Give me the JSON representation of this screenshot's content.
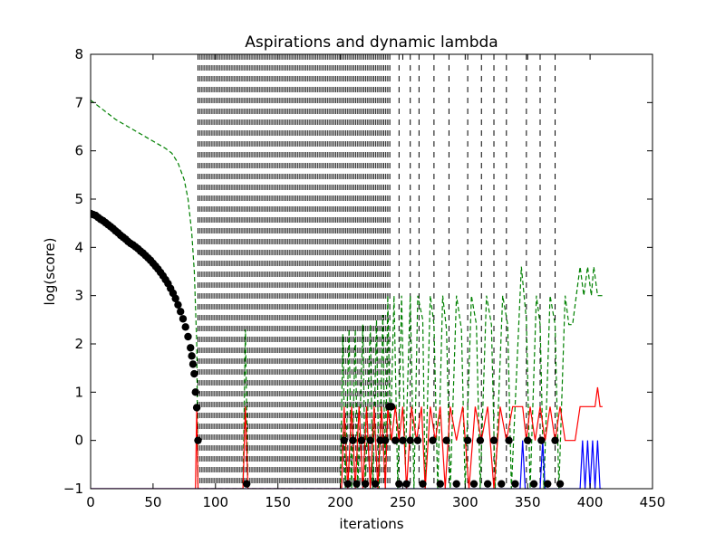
{
  "chart_data": {
    "type": "line",
    "title": "Aspirations and dynamic lambda",
    "xlabel": "iterations",
    "ylabel": "log(score)",
    "xlim": [
      0,
      450
    ],
    "ylim": [
      -1,
      8
    ],
    "xticks": [
      0,
      50,
      100,
      150,
      200,
      250,
      300,
      350,
      400,
      450
    ],
    "yticks": [
      -1,
      0,
      1,
      2,
      3,
      4,
      5,
      6,
      7,
      8
    ],
    "grid": false,
    "legend": "none",
    "colors": {
      "score_markers": "#000000",
      "aspiration": "#008000",
      "lambda_red": "#ff0000",
      "lambda_blue": "#0000ff",
      "restart_lines": "#000000"
    },
    "series": [
      {
        "style": "black-dots",
        "points": [
          [
            0,
            4.7
          ],
          [
            2,
            4.68
          ],
          [
            4,
            4.66
          ],
          [
            6,
            4.62
          ],
          [
            8,
            4.58
          ],
          [
            10,
            4.55
          ],
          [
            12,
            4.51
          ],
          [
            14,
            4.47
          ],
          [
            16,
            4.43
          ],
          [
            18,
            4.39
          ],
          [
            20,
            4.34
          ],
          [
            22,
            4.3
          ],
          [
            24,
            4.25
          ],
          [
            26,
            4.21
          ],
          [
            28,
            4.17
          ],
          [
            30,
            4.12
          ],
          [
            32,
            4.08
          ],
          [
            34,
            4.05
          ],
          [
            36,
            4.01
          ],
          [
            38,
            3.97
          ],
          [
            40,
            3.92
          ],
          [
            42,
            3.88
          ],
          [
            44,
            3.83
          ],
          [
            46,
            3.78
          ],
          [
            48,
            3.73
          ],
          [
            50,
            3.67
          ],
          [
            52,
            3.61
          ],
          [
            54,
            3.55
          ],
          [
            56,
            3.48
          ],
          [
            58,
            3.41
          ],
          [
            60,
            3.33
          ],
          [
            62,
            3.25
          ],
          [
            64,
            3.15
          ],
          [
            66,
            3.05
          ],
          [
            68,
            2.94
          ],
          [
            70,
            2.81
          ],
          [
            72,
            2.67
          ],
          [
            74,
            2.52
          ],
          [
            76,
            2.35
          ],
          [
            78,
            2.15
          ],
          [
            80,
            1.92
          ],
          [
            81,
            1.75
          ],
          [
            82,
            1.58
          ],
          [
            83,
            1.38
          ],
          [
            84,
            1.0
          ],
          [
            85,
            0.68
          ],
          [
            86,
            0.0
          ],
          [
            125,
            -0.9
          ],
          [
            203,
            0.0
          ],
          [
            206,
            -0.9
          ],
          [
            210,
            0.0
          ],
          [
            213,
            -0.9
          ],
          [
            217,
            0.0
          ],
          [
            220,
            -0.9
          ],
          [
            224,
            0.0
          ],
          [
            228,
            -0.9
          ],
          [
            232,
            0.0
          ],
          [
            236,
            0.0
          ],
          [
            239,
            0.7
          ],
          [
            241,
            0.7
          ],
          [
            244,
            0.0
          ],
          [
            247,
            -0.9
          ],
          [
            250,
            0.0
          ],
          [
            253,
            -0.9
          ],
          [
            256,
            0.0
          ],
          [
            262,
            0.0
          ],
          [
            266,
            -0.9
          ],
          [
            274,
            0.0
          ],
          [
            280,
            -0.9
          ],
          [
            285,
            0.0
          ],
          [
            293,
            -0.9
          ],
          [
            302,
            0.0
          ],
          [
            307,
            -0.9
          ],
          [
            312,
            0.0
          ],
          [
            318,
            -0.9
          ],
          [
            323,
            0.0
          ],
          [
            329,
            -0.9
          ],
          [
            335,
            0.0
          ],
          [
            340,
            -0.9
          ],
          [
            350,
            0.0
          ],
          [
            355,
            -0.9
          ],
          [
            361,
            0.0
          ],
          [
            366,
            -0.9
          ],
          [
            372,
            0.0
          ],
          [
            376,
            -0.9
          ]
        ]
      },
      {
        "style": "green-dashed",
        "points": [
          [
            0,
            7.05
          ],
          [
            10,
            6.85
          ],
          [
            20,
            6.65
          ],
          [
            30,
            6.5
          ],
          [
            40,
            6.35
          ],
          [
            50,
            6.2
          ],
          [
            60,
            6.05
          ],
          [
            65,
            5.95
          ],
          [
            70,
            5.75
          ],
          [
            75,
            5.4
          ],
          [
            78,
            5.0
          ],
          [
            81,
            4.3
          ],
          [
            83,
            3.5
          ],
          [
            85,
            2.0
          ],
          [
            86,
            -1.0
          ],
          [
            122,
            -1.0
          ],
          [
            124,
            2.3
          ],
          [
            126,
            -1.0
          ],
          [
            200,
            -1.0
          ],
          [
            202,
            2.2
          ],
          [
            204,
            -1.0
          ],
          [
            207,
            2.3
          ],
          [
            209,
            -1.0
          ],
          [
            212,
            2.3
          ],
          [
            214,
            -1.0
          ],
          [
            218,
            2.4
          ],
          [
            220,
            -1.0
          ],
          [
            224,
            2.4
          ],
          [
            226,
            -1.0
          ],
          [
            229,
            2.5
          ],
          [
            231,
            -1.0
          ],
          [
            234,
            2.6
          ],
          [
            236,
            -1.0
          ],
          [
            238,
            3.0
          ],
          [
            240,
            0.0
          ],
          [
            243,
            3.0
          ],
          [
            246,
            -1.0
          ],
          [
            249,
            3.0
          ],
          [
            252,
            -0.5
          ],
          [
            256,
            3.0
          ],
          [
            259,
            -1.0
          ],
          [
            262,
            3.0
          ],
          [
            266,
            2.5
          ],
          [
            268,
            -1.0
          ],
          [
            272,
            3.0
          ],
          [
            275,
            2.4
          ],
          [
            278,
            -1.0
          ],
          [
            282,
            3.0
          ],
          [
            285,
            2.3
          ],
          [
            288,
            -1.0
          ],
          [
            293,
            3.0
          ],
          [
            297,
            2.3
          ],
          [
            300,
            -1.0
          ],
          [
            305,
            3.0
          ],
          [
            309,
            2.4
          ],
          [
            312,
            -1.0
          ],
          [
            317,
            3.0
          ],
          [
            321,
            2.4
          ],
          [
            324,
            -1.0
          ],
          [
            330,
            3.0
          ],
          [
            334,
            2.4
          ],
          [
            337,
            -1.0
          ],
          [
            345,
            3.6
          ],
          [
            349,
            2.5
          ],
          [
            352,
            -1.0
          ],
          [
            357,
            3.0
          ],
          [
            360,
            2.4
          ],
          [
            363,
            -1.0
          ],
          [
            368,
            3.0
          ],
          [
            372,
            2.4
          ],
          [
            375,
            -1.0
          ],
          [
            380,
            3.0
          ],
          [
            383,
            2.4
          ],
          [
            386,
            2.4
          ],
          [
            390,
            3.2
          ],
          [
            392,
            3.6
          ],
          [
            395,
            3.0
          ],
          [
            398,
            3.6
          ],
          [
            401,
            3.0
          ],
          [
            403,
            3.6
          ],
          [
            406,
            3.0
          ],
          [
            410,
            3.0
          ]
        ]
      },
      {
        "style": "red-solid",
        "points": [
          [
            0,
            -1.0
          ],
          [
            84,
            -1.0
          ],
          [
            85,
            0.7
          ],
          [
            86,
            -1.0
          ],
          [
            122,
            -1.0
          ],
          [
            124,
            0.7
          ],
          [
            126,
            -1.0
          ],
          [
            201,
            -1.0
          ],
          [
            203,
            0.7
          ],
          [
            206,
            -1.0
          ],
          [
            209,
            0.7
          ],
          [
            212,
            -1.0
          ],
          [
            215,
            0.7
          ],
          [
            218,
            -1.0
          ],
          [
            221,
            0.7
          ],
          [
            224,
            -1.0
          ],
          [
            227,
            0.7
          ],
          [
            230,
            -1.0
          ],
          [
            233,
            0.7
          ],
          [
            236,
            -1.0
          ],
          [
            238,
            0.7
          ],
          [
            241,
            0.0
          ],
          [
            244,
            0.7
          ],
          [
            247,
            0.0
          ],
          [
            250,
            0.7
          ],
          [
            253,
            -1.0
          ],
          [
            257,
            0.7
          ],
          [
            261,
            0.0
          ],
          [
            265,
            0.7
          ],
          [
            268,
            -1.0
          ],
          [
            272,
            0.7
          ],
          [
            276,
            0.0
          ],
          [
            280,
            0.7
          ],
          [
            284,
            -1.0
          ],
          [
            288,
            0.7
          ],
          [
            293,
            0.0
          ],
          [
            298,
            0.7
          ],
          [
            303,
            -1.0
          ],
          [
            308,
            0.7
          ],
          [
            313,
            0.0
          ],
          [
            318,
            0.7
          ],
          [
            323,
            -1.0
          ],
          [
            328,
            0.7
          ],
          [
            333,
            0.0
          ],
          [
            338,
            0.7
          ],
          [
            343,
            0.7
          ],
          [
            346,
            0.7
          ],
          [
            349,
            0.0
          ],
          [
            352,
            0.7
          ],
          [
            356,
            0.0
          ],
          [
            360,
            0.7
          ],
          [
            364,
            0.0
          ],
          [
            368,
            0.7
          ],
          [
            372,
            0.0
          ],
          [
            376,
            0.7
          ],
          [
            380,
            0.0
          ],
          [
            384,
            0.0
          ],
          [
            388,
            0.0
          ],
          [
            392,
            0.7
          ],
          [
            404,
            0.7
          ],
          [
            406,
            1.1
          ],
          [
            408,
            0.7
          ],
          [
            410,
            0.7
          ]
        ]
      },
      {
        "style": "blue-solid",
        "points": [
          [
            0,
            -1.0
          ],
          [
            344,
            -1.0
          ],
          [
            346,
            0.0
          ],
          [
            348,
            -1.0
          ],
          [
            360,
            -1.0
          ],
          [
            362,
            0.0
          ],
          [
            364,
            -1.0
          ],
          [
            392,
            -1.0
          ],
          [
            394,
            0.0
          ],
          [
            396,
            -1.0
          ],
          [
            398,
            0.0
          ],
          [
            400,
            -1.0
          ],
          [
            402,
            0.0
          ],
          [
            404,
            -1.0
          ],
          [
            406,
            0.0
          ],
          [
            408,
            -1.0
          ],
          [
            410,
            -1.0
          ]
        ]
      }
    ],
    "dashed_vlines_dense_x": [
      86,
      241
    ],
    "dashed_vlines_sparse_x": [
      247,
      256,
      263,
      275,
      287,
      302,
      313,
      323,
      333,
      349,
      360,
      372
    ]
  }
}
